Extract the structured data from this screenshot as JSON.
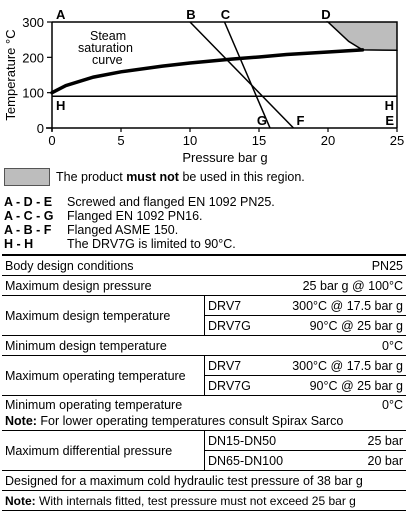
{
  "chart_data": {
    "type": "line",
    "ylabel": "Temperature °C",
    "xlabel": "Pressure bar g",
    "xlim": [
      0,
      25
    ],
    "ylim": [
      -10,
      300
    ],
    "x_ticks": [
      0,
      5,
      10,
      15,
      20,
      25
    ],
    "y_ticks": [
      0,
      100,
      200,
      300
    ],
    "x_tick_labels": [
      "0",
      "5",
      "10",
      "15",
      "20",
      "25"
    ],
    "y_tick_labels": [
      "0",
      "100",
      "200",
      "300"
    ],
    "steam_curve_label": "Steam saturation curve",
    "steam_curve_label_lines": [
      "Steam",
      "saturation",
      "curve"
    ],
    "steam_curve": [
      [
        0,
        100
      ],
      [
        1,
        120
      ],
      [
        3,
        144
      ],
      [
        5,
        159
      ],
      [
        8,
        175
      ],
      [
        10,
        184
      ],
      [
        13,
        195
      ],
      [
        15,
        201
      ],
      [
        17,
        208
      ],
      [
        20,
        215
      ],
      [
        22.5,
        221
      ]
    ],
    "limit_lines": [
      {
        "name": "A",
        "points": [
          [
            0,
            300
          ],
          [
            0,
            0
          ]
        ]
      },
      {
        "name": "B",
        "points": [
          [
            10,
            300
          ],
          [
            17.5,
            0
          ]
        ]
      },
      {
        "name": "C",
        "points": [
          [
            12.5,
            300
          ],
          [
            15.8,
            0
          ]
        ]
      },
      {
        "name": "D",
        "points": [
          [
            20,
            300
          ],
          [
            25,
            300
          ]
        ]
      },
      {
        "name": "H",
        "points": [
          [
            0,
            90
          ],
          [
            25,
            90
          ]
        ]
      }
    ],
    "forbidden_region": [
      [
        20,
        300
      ],
      [
        25,
        300
      ],
      [
        25,
        220
      ],
      [
        22.5,
        221
      ],
      [
        21.5,
        245
      ]
    ],
    "boundary_ade": [
      [
        0,
        300
      ],
      [
        20,
        300
      ],
      [
        22.5,
        221
      ],
      [
        25,
        100
      ],
      [
        25,
        0
      ]
    ],
    "corner_labels": {
      "A": "A",
      "B": "B",
      "C": "C",
      "D": "D",
      "E": "E",
      "F": "F",
      "G": "G",
      "H_left": "H",
      "H_right": "H"
    },
    "colors": {
      "line": "#000000",
      "region": "#bdbdbd"
    }
  },
  "legend": {
    "text_before": "The product ",
    "text_bold": "must not",
    "text_after": " be used in this region."
  },
  "codes": [
    {
      "key": "A - D - E",
      "desc": "Screwed and flanged EN 1092 PN25."
    },
    {
      "key": "A - C - G",
      "desc": "Flanged EN 1092 PN16."
    },
    {
      "key": "A - B - F",
      "desc": "Flanged ASME 150."
    },
    {
      "key": "H - H",
      "desc": "The DRV7G is limited to 90°C."
    }
  ],
  "table": {
    "body_design_label": "Body design conditions",
    "body_design_value": "PN25",
    "max_design_pressure_label": "Maximum design pressure",
    "max_design_pressure_value": "25 bar g @ 100°C",
    "max_design_temp_label": "Maximum design temperature",
    "max_design_temp_rows": [
      {
        "model": "DRV7",
        "value": "300°C @ 17.5 bar g"
      },
      {
        "model": "DRV7G",
        "value": "90°C @ 25 bar g"
      }
    ],
    "min_design_temp_label": "Minimum design temperature",
    "min_design_temp_value": "0°C",
    "max_op_temp_label": "Maximum operating temperature",
    "max_op_temp_rows": [
      {
        "model": "DRV7",
        "value": "300°C @ 17.5 bar g"
      },
      {
        "model": "DRV7G",
        "value": "90°C @ 25 bar g"
      }
    ],
    "min_op_temp_label": "Minimum operating temperature",
    "min_op_temp_value": "0°C",
    "note1_label": "Note:",
    "note1_text": " For lower operating temperatures consult Spirax Sarco",
    "max_diff_label": "Maximum differential pressure",
    "max_diff_rows": [
      {
        "size": "DN15-DN50",
        "value": "25 bar"
      },
      {
        "size": "DN65-DN100",
        "value": "20 bar"
      }
    ],
    "hydraulic_text": "Designed for a maximum cold hydraulic test pressure of 38 bar g",
    "note2_label": "Note:",
    "note2_text": " With internals fitted, test pressure must not exceed 25 bar g"
  }
}
